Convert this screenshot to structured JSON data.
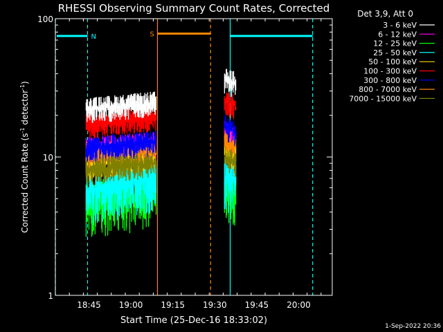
{
  "chart_data": {
    "type": "line",
    "title": "RHESSI Observing Summary Count Rates, Corrected",
    "xlabel": "Start Time (25-Dec-16 18:33:02)",
    "ylabel_main": "Corrected Count Rate (s",
    "ylabel_sup1": "-1",
    "ylabel_mid": " detector",
    "ylabel_sup2": "-1",
    "ylabel_end": ")",
    "y_scale": "log",
    "ylim": [
      1,
      100
    ],
    "y_ticks": [
      {
        "value": 1,
        "label": "1"
      },
      {
        "value": 10,
        "label": "10"
      },
      {
        "value": 100,
        "label": "100"
      }
    ],
    "xlim_minutes": [
      0,
      99
    ],
    "x_ticks": [
      {
        "t": 12,
        "label": "18:45"
      },
      {
        "t": 27,
        "label": "19:00"
      },
      {
        "t": 42,
        "label": "19:15"
      },
      {
        "t": 57,
        "label": "19:30"
      },
      {
        "t": 72,
        "label": "19:45"
      },
      {
        "t": 87,
        "label": "20:00"
      }
    ],
    "legend_title": "Det 3,9, Att 0",
    "legend_position": "top-right",
    "series": [
      {
        "name": "3 - 6 keV",
        "color": "#ffffff",
        "seg1": [
          22,
          24.5
        ],
        "seg2": [
          36,
          34
        ]
      },
      {
        "name": "6 - 12 keV",
        "color": "#ff00ff",
        "seg1": [
          11.5,
          12.5
        ],
        "seg2": [
          15,
          13
        ]
      },
      {
        "name": "12 - 25 keV",
        "color": "#00ff00",
        "seg1": [
          4.6,
          5.4
        ],
        "seg2": [
          5.8,
          5.2
        ]
      },
      {
        "name": "25 - 50 keV",
        "color": "#00ffff",
        "seg1": [
          5.6,
          7.2
        ],
        "seg2": [
          7.2,
          6.6
        ]
      },
      {
        "name": "50 - 100 keV",
        "color": "#ffdd00",
        "seg1": [
          8.5,
          10.5
        ],
        "seg2": [
          11,
          10
        ]
      },
      {
        "name": "100 - 300 keV",
        "color": "#ff0000",
        "seg1": [
          17,
          19.5
        ],
        "seg2": [
          26,
          23
        ]
      },
      {
        "name": "300 - 800 keV",
        "color": "#0000ff",
        "seg1": [
          11.5,
          12.8
        ],
        "seg2": [
          17,
          15
        ]
      },
      {
        "name": "800 - 7000 keV",
        "color": "#ff8800",
        "seg1": [
          10.5,
          11.5
        ],
        "seg2": [
          13,
          12
        ]
      },
      {
        "name": "7000 - 15000 keV",
        "color": "#808000",
        "seg1": [
          8,
          9
        ],
        "seg2": [
          10,
          9
        ]
      }
    ],
    "data_segments_minutes": [
      [
        11,
        36
      ],
      [
        60.5,
        64.5
      ]
    ],
    "events": {
      "night": {
        "label": "N",
        "color": "#00ffff",
        "intervals": [
          [
            0,
            11.5
          ],
          [
            62.5,
            92
          ]
        ],
        "bar_y": 75
      },
      "saa": {
        "label": "S",
        "color": "#ff8800",
        "intervals": [
          [
            36.5,
            55.5
          ]
        ],
        "bar_y": 78
      }
    },
    "footer_date": "1-Sep-2022 20:36"
  }
}
